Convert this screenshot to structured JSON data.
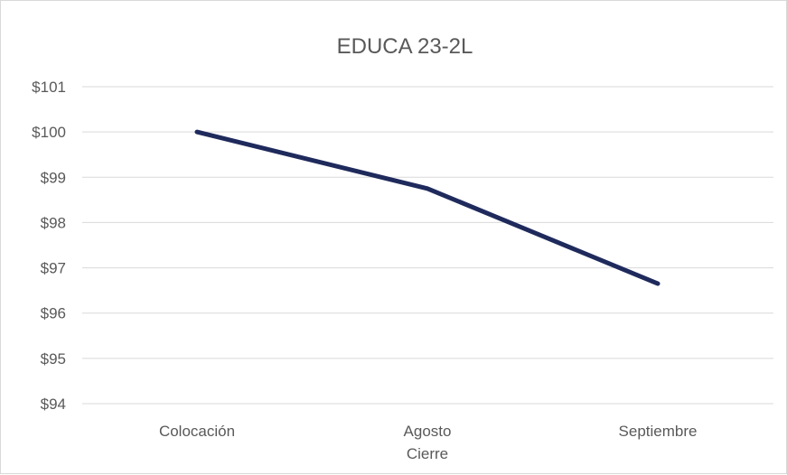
{
  "chart_data": {
    "type": "line",
    "title": "EDUCA 23-2L",
    "xlabel": "Cierre",
    "ylabel": "",
    "categories": [
      "Colocación",
      "Agosto",
      "Septiembre"
    ],
    "series": [
      {
        "values": [
          100,
          98.75,
          96.65
        ]
      }
    ],
    "ylim": [
      94,
      101
    ],
    "yticks": [
      94,
      95,
      96,
      97,
      98,
      99,
      100,
      101
    ],
    "ytick_labels": [
      "$94",
      "$95",
      "$96",
      "$97",
      "$98",
      "$99",
      "$100",
      "$101"
    ],
    "grid": true,
    "legend": "none",
    "colors": {
      "line": "#1f2a5c",
      "grid": "#d9d9d9",
      "text": "#595959"
    }
  }
}
